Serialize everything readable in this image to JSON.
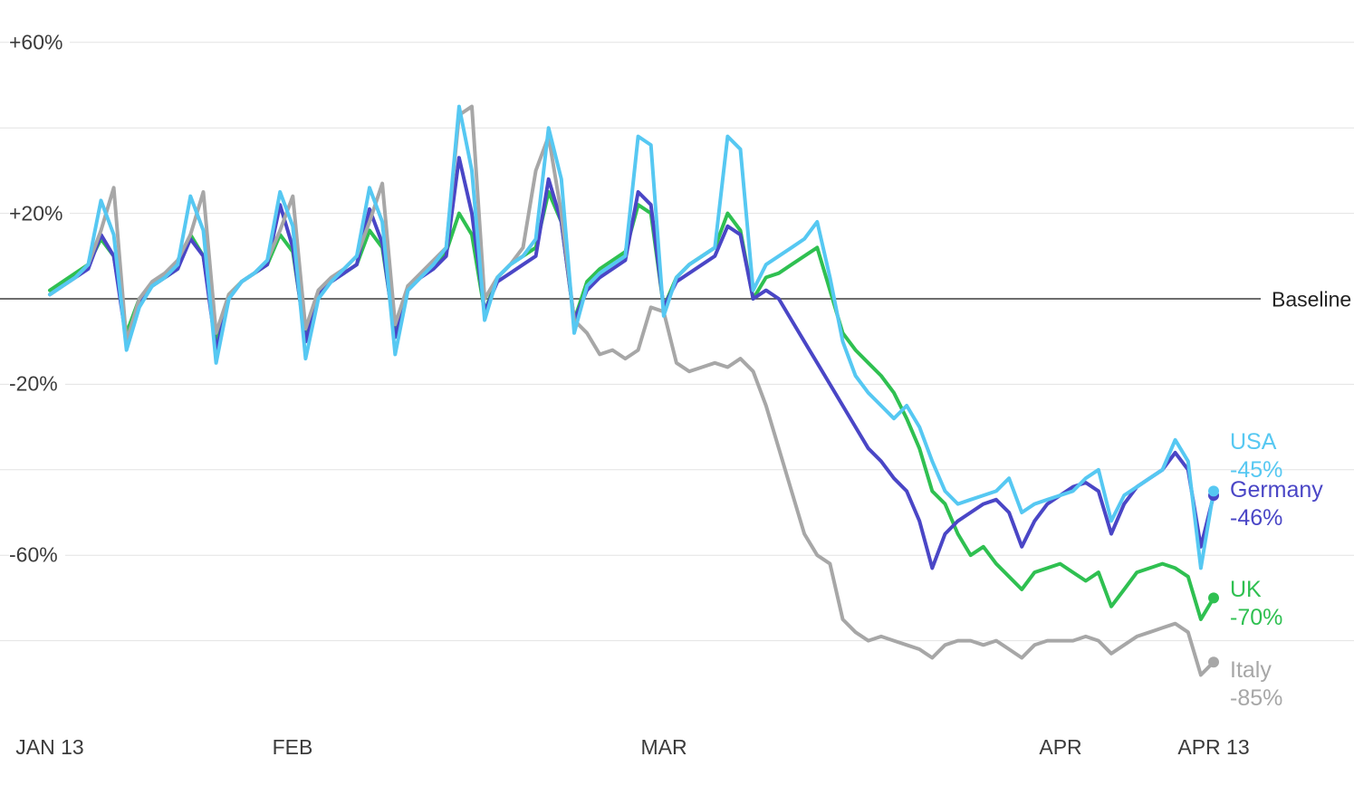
{
  "chart_data": {
    "type": "line",
    "title": "",
    "baseline_label": "Baseline",
    "x_unit": "day",
    "start_label": "JAN 13",
    "end_label": "APR 13",
    "num_days": 92,
    "ylim": [
      -95,
      70
    ],
    "grid": true,
    "y_gridlines": [
      60,
      40,
      20,
      -20,
      -40,
      -60,
      -80
    ],
    "y_ticks": [
      {
        "label": "+60%",
        "value": 60
      },
      {
        "label": "+20%",
        "value": 20
      },
      {
        "label": "-20%",
        "value": -20
      },
      {
        "label": "-60%",
        "value": -60
      }
    ],
    "x_ticks": [
      {
        "label": "JAN 13",
        "day": 0
      },
      {
        "label": "FEB",
        "day": 19
      },
      {
        "label": "MAR",
        "day": 48
      },
      {
        "label": "APR",
        "day": 79
      },
      {
        "label": "APR 13",
        "day": 91
      }
    ],
    "legend_position": "right-of-line-ends",
    "series": [
      {
        "name": "USA",
        "end_label": "-45%",
        "end_value": -45,
        "color": "#56c8f2",
        "values": [
          1,
          3,
          5,
          8,
          23,
          15,
          -12,
          -2,
          3,
          5,
          8,
          24,
          16,
          -15,
          0,
          4,
          6,
          9,
          25,
          17,
          -14,
          0,
          4,
          7,
          10,
          26,
          18,
          -13,
          2,
          5,
          8,
          12,
          45,
          30,
          -5,
          5,
          8,
          10,
          14,
          40,
          28,
          -8,
          3,
          6,
          8,
          10,
          38,
          36,
          -4,
          5,
          8,
          10,
          12,
          38,
          35,
          2,
          8,
          10,
          12,
          14,
          18,
          5,
          -10,
          -18,
          -22,
          -25,
          -28,
          -25,
          -30,
          -38,
          -45,
          -48,
          -47,
          -46,
          -45,
          -42,
          -50,
          -48,
          -47,
          -46,
          -45,
          -42,
          -40,
          -52,
          -46,
          -44,
          -42,
          -40,
          -33,
          -38,
          -63,
          -45
        ]
      },
      {
        "name": "Germany",
        "end_label": "-46%",
        "end_value": -46,
        "color": "#4a46c6",
        "values": [
          1,
          3,
          5,
          7,
          15,
          10,
          -10,
          -1,
          3,
          5,
          7,
          14,
          10,
          -12,
          0,
          4,
          6,
          8,
          22,
          12,
          -10,
          1,
          4,
          6,
          8,
          21,
          13,
          -9,
          2,
          5,
          7,
          10,
          33,
          20,
          -3,
          4,
          6,
          8,
          10,
          28,
          18,
          -5,
          2,
          5,
          7,
          9,
          25,
          22,
          -2,
          4,
          6,
          8,
          10,
          17,
          15,
          0,
          2,
          0,
          -5,
          -10,
          -15,
          -20,
          -25,
          -30,
          -35,
          -38,
          -42,
          -45,
          -52,
          -63,
          -55,
          -52,
          -50,
          -48,
          -47,
          -50,
          -58,
          -52,
          -48,
          -46,
          -44,
          -43,
          -45,
          -55,
          -48,
          -44,
          -42,
          -40,
          -36,
          -40,
          -58,
          -46
        ]
      },
      {
        "name": "UK",
        "end_label": "-70%",
        "end_value": -70,
        "color": "#2fc051",
        "values": [
          2,
          4,
          6,
          8,
          14,
          10,
          -8,
          0,
          3,
          5,
          7,
          15,
          10,
          -10,
          1,
          4,
          6,
          8,
          15,
          11,
          -9,
          1,
          4,
          6,
          8,
          16,
          12,
          -8,
          3,
          5,
          8,
          11,
          20,
          15,
          -3,
          5,
          8,
          10,
          12,
          25,
          18,
          -5,
          4,
          7,
          9,
          11,
          22,
          20,
          -2,
          5,
          8,
          10,
          12,
          20,
          16,
          0,
          5,
          6,
          8,
          10,
          12,
          2,
          -8,
          -12,
          -15,
          -18,
          -22,
          -28,
          -35,
          -45,
          -48,
          -55,
          -60,
          -58,
          -62,
          -65,
          -68,
          -64,
          -63,
          -62,
          -64,
          -66,
          -64,
          -72,
          -68,
          -64,
          -63,
          -62,
          -63,
          -65,
          -75,
          -70
        ]
      },
      {
        "name": "Italy",
        "end_label": "-85%",
        "end_value": -85,
        "color": "#a7a7a7",
        "values": [
          1,
          3,
          5,
          8,
          16,
          26,
          -10,
          0,
          4,
          6,
          9,
          15,
          25,
          -8,
          1,
          4,
          6,
          9,
          16,
          24,
          -7,
          2,
          5,
          7,
          10,
          18,
          27,
          -6,
          3,
          6,
          9,
          12,
          43,
          45,
          0,
          5,
          8,
          12,
          30,
          38,
          20,
          -5,
          -8,
          -13,
          -12,
          -14,
          -12,
          -2,
          -3,
          -15,
          -17,
          -16,
          -15,
          -16,
          -14,
          -17,
          -25,
          -35,
          -45,
          -55,
          -60,
          -62,
          -75,
          -78,
          -80,
          -79,
          -80,
          -81,
          -82,
          -84,
          -81,
          -80,
          -80,
          -81,
          -80,
          -82,
          -84,
          -81,
          -80,
          -80,
          -80,
          -79,
          -80,
          -83,
          -81,
          -79,
          -78,
          -77,
          -76,
          -78,
          -88,
          -85
        ]
      }
    ]
  }
}
